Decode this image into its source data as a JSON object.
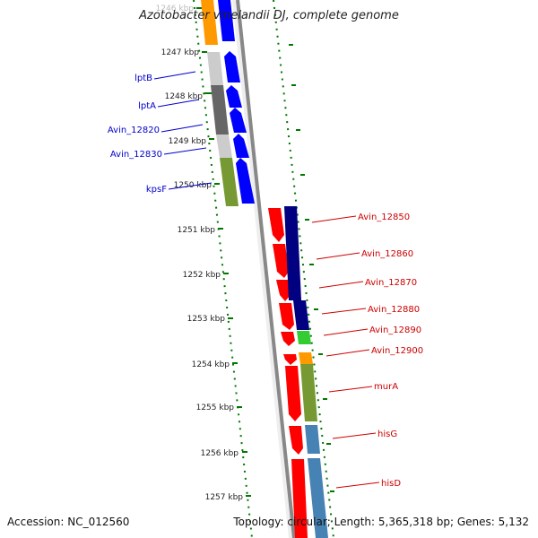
{
  "title": "Azotobacter vinelandii DJ, complete genome",
  "accession": "Accession: NC_012560",
  "topology": "Topology: circular; Length: 5,365,318 bp; Genes: 5,132",
  "colors": {
    "reverse_label": "#0000cc",
    "forward_label": "#cc0000",
    "tick": "#007700",
    "backbone": "#888888"
  },
  "ticks": [
    "1246 kbp",
    "1247 kbp",
    "1248 kbp",
    "1249 kbp",
    "1250 kbp",
    "1251 kbp",
    "1252 kbp",
    "1253 kbp",
    "1254 kbp",
    "1255 kbp",
    "1256 kbp",
    "1257 kbp"
  ],
  "reverse_genes": [
    "lptB",
    "lptA",
    "Avin_12820",
    "Avin_12830",
    "kpsF"
  ],
  "forward_genes": [
    "Avin_12850",
    "Avin_12860",
    "Avin_12870",
    "Avin_12880",
    "Avin_12890",
    "Avin_12900",
    "murA",
    "hisG",
    "hisD"
  ]
}
